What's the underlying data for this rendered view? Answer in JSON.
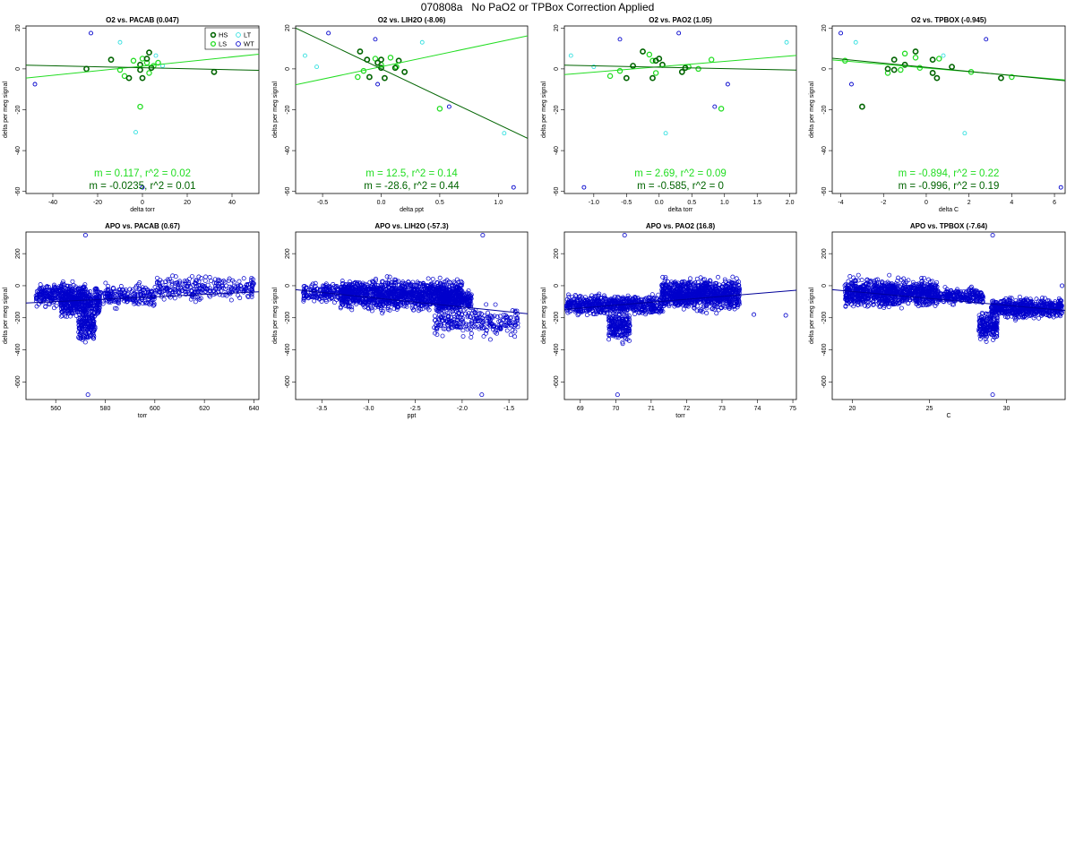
{
  "page": {
    "title": "070808a   No PaO2 or TPBox Correction Applied",
    "ylabel": "delta per meg signal"
  },
  "legend": [
    "HS",
    "LT",
    "LS",
    "WT"
  ],
  "colors": {
    "HS": "#006400",
    "LS": "#22dd22",
    "LT": "#33e0e0",
    "WT": "#0000cc",
    "fit_ls": "#22dd22",
    "fit_hs": "#006400",
    "fit_apo": "#000099"
  },
  "chart_data": [
    {
      "type": "scatter",
      "title": "O2 vs. PACAB (0.047)",
      "xlabel": "delta torr",
      "xlim": [
        -52,
        52
      ],
      "ylim": [
        -61,
        21
      ],
      "xticks": [
        -40,
        -20,
        0,
        20,
        40
      ],
      "yticks": [
        -60,
        -40,
        -20,
        0,
        20
      ],
      "annotations": [
        "m = 0.117, r^2 = 0.02",
        "m = -0.0235, r^2 = 0.01"
      ],
      "fits": [
        {
          "series": "LS",
          "x": [
            -52,
            52
          ],
          "y": [
            -4.5,
            7.2
          ]
        },
        {
          "series": "HS",
          "x": [
            -52,
            52
          ],
          "y": [
            1.8,
            -0.7
          ]
        }
      ],
      "series": [
        {
          "name": "HS",
          "points": [
            [
              -25,
              0
            ],
            [
              -14,
              4.5
            ],
            [
              -6,
              -4.5
            ],
            [
              -1,
              2
            ],
            [
              0,
              -4.5
            ],
            [
              2,
              5
            ],
            [
              3,
              8
            ],
            [
              4,
              0.5
            ],
            [
              32,
              -1.5
            ],
            [
              -1,
              -0.5
            ]
          ]
        },
        {
          "name": "LS",
          "points": [
            [
              -10,
              -0.5
            ],
            [
              -8,
              -3.5
            ],
            [
              -4,
              4
            ],
            [
              0,
              5
            ],
            [
              2,
              3
            ],
            [
              5,
              1.5
            ],
            [
              7,
              3
            ],
            [
              -1,
              -18.5
            ],
            [
              3,
              -2
            ]
          ]
        },
        {
          "name": "LT",
          "points": [
            [
              -10,
              13
            ],
            [
              6,
              6.5
            ],
            [
              9,
              1.5
            ],
            [
              -3,
              -31
            ]
          ]
        },
        {
          "name": "WT",
          "points": [
            [
              -48,
              -7.5
            ],
            [
              -23,
              17.5
            ],
            [
              0,
              -58
            ]
          ]
        }
      ]
    },
    {
      "type": "scatter",
      "title": "O2 vs. LIH2O (-8.06)",
      "xlabel": "delta ppt",
      "xlim": [
        -0.73,
        1.25
      ],
      "ylim": [
        -61,
        21
      ],
      "xticks": [
        -0.5,
        0.0,
        0.5,
        1.0
      ],
      "yticks": [
        -60,
        -40,
        -20,
        0,
        20
      ],
      "annotations": [
        "m = 12.5, r^2 = 0.14",
        "m = -28.6, r^2 = 0.44"
      ],
      "fits": [
        {
          "series": "LS",
          "x": [
            -0.73,
            1.25
          ],
          "y": [
            -7.8,
            16.2
          ]
        },
        {
          "series": "HS",
          "x": [
            -0.73,
            1.25
          ],
          "y": [
            20,
            -34
          ]
        }
      ],
      "series": [
        {
          "name": "HS",
          "points": [
            [
              -0.18,
              8.5
            ],
            [
              -0.12,
              4.5
            ],
            [
              -0.1,
              -4
            ],
            [
              -0.03,
              3
            ],
            [
              0.0,
              4.5
            ],
            [
              0.0,
              0.5
            ],
            [
              0.03,
              -4.5
            ],
            [
              0.12,
              0.5
            ],
            [
              0.15,
              4
            ],
            [
              0.2,
              -1.5
            ]
          ]
        },
        {
          "name": "LS",
          "points": [
            [
              -0.2,
              -4
            ],
            [
              -0.15,
              -1
            ],
            [
              -0.05,
              5
            ],
            [
              0.08,
              5.5
            ],
            [
              0.13,
              1
            ],
            [
              0.5,
              -19.5
            ],
            [
              0.0,
              2
            ]
          ]
        },
        {
          "name": "LT",
          "points": [
            [
              -0.65,
              6.5
            ],
            [
              -0.55,
              1
            ],
            [
              0.35,
              13
            ],
            [
              1.05,
              -31.5
            ]
          ]
        },
        {
          "name": "WT",
          "points": [
            [
              -0.45,
              17.5
            ],
            [
              -0.05,
              14.5
            ],
            [
              0.58,
              -18.5
            ],
            [
              -0.03,
              -7.5
            ],
            [
              1.13,
              -58
            ]
          ]
        }
      ]
    },
    {
      "type": "scatter",
      "title": "O2 vs. PAO2 (1.05)",
      "xlabel": "delta torr",
      "xlim": [
        -1.45,
        2.1
      ],
      "ylim": [
        -61,
        21
      ],
      "xticks": [
        -1.0,
        -0.5,
        0.0,
        0.5,
        1.0,
        1.5,
        2.0
      ],
      "yticks": [
        -60,
        -40,
        -20,
        0,
        20
      ],
      "annotations": [
        "m = 2.69, r^2 = 0.09",
        "m = -0.585, r^2 = 0"
      ],
      "fits": [
        {
          "series": "LS",
          "x": [
            -1.45,
            2.1
          ],
          "y": [
            -2.8,
            6.6
          ]
        },
        {
          "series": "HS",
          "x": [
            -1.45,
            2.1
          ],
          "y": [
            1.8,
            -0.6
          ]
        }
      ],
      "series": [
        {
          "name": "HS",
          "points": [
            [
              -0.5,
              -4.5
            ],
            [
              -0.4,
              1.5
            ],
            [
              -0.25,
              8.5
            ],
            [
              -0.1,
              -4.5
            ],
            [
              0.0,
              5
            ],
            [
              0.05,
              2
            ],
            [
              0.35,
              -1.5
            ],
            [
              0.4,
              0.5
            ],
            [
              -0.05,
              4
            ]
          ]
        },
        {
          "name": "LS",
          "points": [
            [
              -0.75,
              -3.5
            ],
            [
              -0.6,
              -1
            ],
            [
              -0.15,
              7
            ],
            [
              -0.1,
              4
            ],
            [
              -0.05,
              -2
            ],
            [
              0.45,
              1
            ],
            [
              0.6,
              0
            ],
            [
              0.8,
              4.5
            ],
            [
              0.95,
              -19.5
            ]
          ]
        },
        {
          "name": "LT",
          "points": [
            [
              -1.35,
              6.5
            ],
            [
              -1.0,
              1
            ],
            [
              0.1,
              -31.5
            ],
            [
              1.95,
              13
            ]
          ]
        },
        {
          "name": "WT",
          "points": [
            [
              -0.6,
              14.5
            ],
            [
              0.3,
              17.5
            ],
            [
              0.85,
              -18.5
            ],
            [
              1.05,
              -7.5
            ],
            [
              -1.15,
              -58
            ]
          ]
        }
      ]
    },
    {
      "type": "scatter",
      "title": "O2 vs. TPBOX (-0.945)",
      "xlabel": "delta C",
      "xlim": [
        -4.4,
        6.5
      ],
      "ylim": [
        -61,
        21
      ],
      "xticks": [
        -4,
        -2,
        0,
        2,
        4,
        6
      ],
      "yticks": [
        -60,
        -40,
        -20,
        0,
        20
      ],
      "annotations": [
        "m = -0.894, r^2 = 0.22",
        "m = -0.996, r^2 = 0.19"
      ],
      "fits": [
        {
          "series": "LS",
          "x": [
            -4.4,
            6.5
          ],
          "y": [
            4.4,
            -5.4
          ]
        },
        {
          "series": "HS",
          "x": [
            -4.4,
            6.5
          ],
          "y": [
            5.2,
            -5.8
          ]
        }
      ],
      "series": [
        {
          "name": "HS",
          "points": [
            [
              -1.8,
              0
            ],
            [
              -1.5,
              4.5
            ],
            [
              -1.5,
              -0.5
            ],
            [
              -1.0,
              2
            ],
            [
              -0.5,
              8.5
            ],
            [
              0.3,
              4.5
            ],
            [
              0.3,
              -2
            ],
            [
              0.5,
              -4.5
            ],
            [
              1.2,
              1
            ],
            [
              3.5,
              -4.5
            ],
            [
              -3,
              -18.5
            ]
          ]
        },
        {
          "name": "LS",
          "points": [
            [
              -3.8,
              4
            ],
            [
              -1.8,
              -2
            ],
            [
              -1.2,
              -0.5
            ],
            [
              -1.0,
              7.5
            ],
            [
              -0.5,
              5.5
            ],
            [
              -0.3,
              0.5
            ],
            [
              0.6,
              5
            ],
            [
              2.1,
              -1.5
            ],
            [
              4.0,
              -4
            ]
          ]
        },
        {
          "name": "LT",
          "points": [
            [
              -3.3,
              13
            ],
            [
              0.8,
              6.5
            ],
            [
              1.8,
              -31.5
            ]
          ]
        },
        {
          "name": "WT",
          "points": [
            [
              -4.0,
              17.5
            ],
            [
              -3.5,
              -7.5
            ],
            [
              2.8,
              14.5
            ],
            [
              6.3,
              -58
            ]
          ]
        }
      ]
    },
    {
      "type": "scatter",
      "title": "APO vs. PACAB (0.67)",
      "xlabel": "torr",
      "xlim": [
        548,
        642
      ],
      "ylim": [
        -710,
        335
      ],
      "xticks": [
        560,
        580,
        600,
        620,
        640
      ],
      "yticks": [
        -600,
        -400,
        -200,
        0,
        200
      ],
      "fits": [
        {
          "series": "WT",
          "x": [
            548,
            642
          ],
          "y": [
            -108,
            -38
          ]
        }
      ],
      "outliers": [
        [
          572,
          315
        ],
        [
          573,
          -680
        ]
      ],
      "clusters": [
        {
          "cx": [
            552,
            572
          ],
          "cy": [
            -150,
            40
          ],
          "n": 300
        },
        {
          "cx": [
            562,
            578
          ],
          "cy": [
            -220,
            0
          ],
          "n": 350
        },
        {
          "cx": [
            569,
            576
          ],
          "cy": [
            -380,
            -100
          ],
          "n": 170
        },
        {
          "cx": [
            576,
            600
          ],
          "cy": [
            -160,
            30
          ],
          "n": 220
        },
        {
          "cx": [
            600,
            640
          ],
          "cy": [
            -110,
            80
          ],
          "n": 260
        }
      ]
    },
    {
      "type": "scatter",
      "title": "APO vs. LIH2O (-57.3)",
      "xlabel": "ppt",
      "xlim": [
        -3.78,
        -1.3
      ],
      "ylim": [
        -710,
        335
      ],
      "xticks": [
        -3.5,
        -3.0,
        -2.5,
        -2.0,
        -1.5
      ],
      "yticks": [
        -600,
        -400,
        -200,
        0,
        200
      ],
      "fits": [
        {
          "series": "WT",
          "x": [
            -3.78,
            -1.3
          ],
          "y": [
            -25,
            -175
          ]
        }
      ],
      "outliers": [
        [
          -1.78,
          315
        ],
        [
          -1.79,
          -680
        ]
      ],
      "clusters": [
        {
          "cx": [
            -3.7,
            -3.2
          ],
          "cy": [
            -120,
            30
          ],
          "n": 200
        },
        {
          "cx": [
            -3.3,
            -2.0
          ],
          "cy": [
            -180,
            70
          ],
          "n": 1300
        },
        {
          "cx": [
            -2.25,
            -1.9
          ],
          "cy": [
            -180,
            0
          ],
          "n": 220
        },
        {
          "cx": [
            -2.3,
            -1.4
          ],
          "cy": [
            -350,
            -90
          ],
          "n": 260
        }
      ]
    },
    {
      "type": "scatter",
      "title": "APO vs. PAO2 (16.8)",
      "xlabel": "torr",
      "xlim": [
        68.55,
        75.1
      ],
      "ylim": [
        -710,
        335
      ],
      "xticks": [
        69,
        70,
        71,
        72,
        73,
        74,
        75
      ],
      "yticks": [
        -600,
        -400,
        -200,
        0,
        200
      ],
      "fits": [
        {
          "series": "WT",
          "x": [
            68.55,
            75.1
          ],
          "y": [
            -148,
            -28
          ]
        }
      ],
      "outliers": [
        [
          70.25,
          315
        ],
        [
          70.05,
          -680
        ],
        [
          73.9,
          -180
        ],
        [
          74.8,
          -185
        ]
      ],
      "clusters": [
        {
          "cx": [
            68.6,
            71.3
          ],
          "cy": [
            -200,
            -40
          ],
          "n": 650
        },
        {
          "cx": [
            69.8,
            70.4
          ],
          "cy": [
            -380,
            -130
          ],
          "n": 200
        },
        {
          "cx": [
            71.3,
            73.5
          ],
          "cy": [
            -180,
            70
          ],
          "n": 950
        }
      ]
    },
    {
      "type": "scatter",
      "title": "APO vs. TPBOX (-7.64)",
      "xlabel": "C",
      "xlim": [
        18.7,
        33.8
      ],
      "ylim": [
        -710,
        335
      ],
      "xticks": [
        20,
        25,
        30
      ],
      "yticks": [
        -600,
        -400,
        -200,
        0,
        200
      ],
      "fits": [
        {
          "series": "WT",
          "x": [
            18.7,
            33.8
          ],
          "y": [
            -25,
            -155
          ]
        }
      ],
      "outliers": [
        [
          29.1,
          315
        ],
        [
          29.1,
          -680
        ],
        [
          33.6,
          0
        ]
      ],
      "clusters": [
        {
          "cx": [
            19.5,
            25.5
          ],
          "cy": [
            -160,
            70
          ],
          "n": 950
        },
        {
          "cx": [
            25.5,
            28.5
          ],
          "cy": [
            -130,
            0
          ],
          "n": 250
        },
        {
          "cx": [
            28.2,
            29.4
          ],
          "cy": [
            -360,
            -150
          ],
          "n": 180
        },
        {
          "cx": [
            29.0,
            33.6
          ],
          "cy": [
            -220,
            -60
          ],
          "n": 600
        }
      ]
    }
  ]
}
